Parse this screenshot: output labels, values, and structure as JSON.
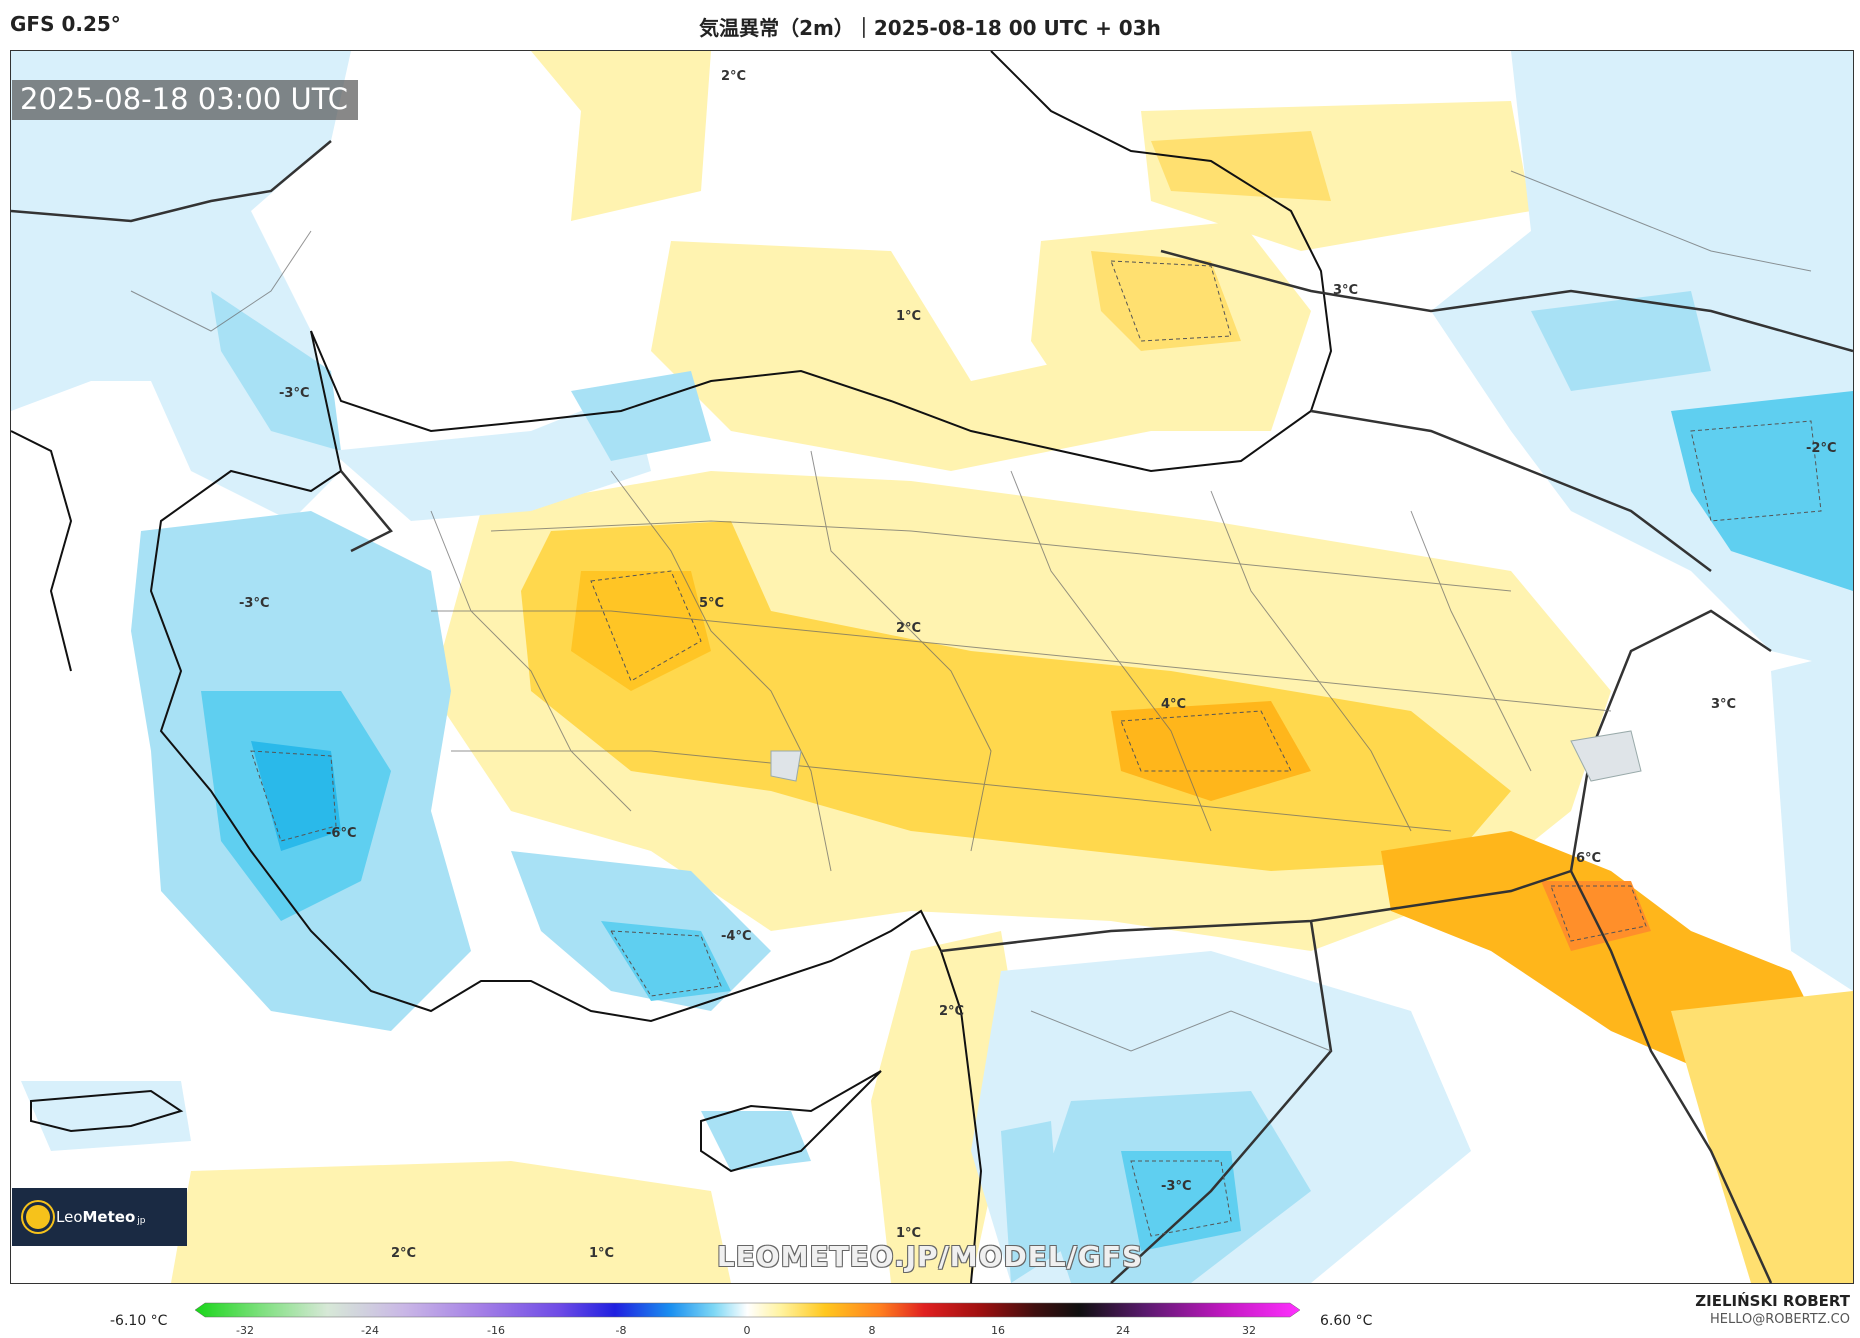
{
  "header": {
    "model": "GFS 0.25°",
    "title": "気温異常（2m）｜2025-08-18 00 UTC + 03h"
  },
  "map": {
    "timestamp": "2025-08-18 03:00 UTC",
    "watermark": "LEOMETEO.JP/MODEL/GFS",
    "logo": {
      "name": "Leo",
      "name_bold": "Meteo",
      "suffix": "jp"
    },
    "contour_labels": [
      "2°C",
      "1°C",
      "3°C",
      "-3°C",
      "-3°C",
      "5°C",
      "2°C",
      "4°C",
      "3°C",
      "-6°C",
      "-4°C",
      "6°C",
      "2°C",
      "-3°C",
      "1°C",
      "2°C",
      "1°C",
      "-2°C"
    ]
  },
  "legend": {
    "min_label": "-6.10 °C",
    "max_label": "6.60 °C",
    "ticks": [
      "-32",
      "-24",
      "-16",
      "-8",
      "0",
      "8",
      "16",
      "24",
      "32"
    ]
  },
  "credit": {
    "name": "ZIELIŃSKI ROBERT",
    "email": "HELLO@ROBERTZ.CO"
  }
}
